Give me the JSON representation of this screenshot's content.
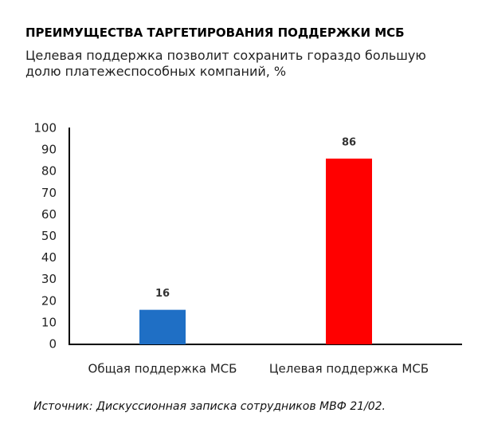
{
  "chart_data": {
    "type": "bar",
    "title": "ПРЕИМУЩЕСТВА ТАРГЕТИРОВАНИЯ ПОДДЕРЖКИ МСБ",
    "subtitle": "Целевая поддержка позволит сохранить гораздо большую долю платежеспособных компаний, %",
    "source": "Источник: Дискуссионная записка сотрудников МВФ 21/02.",
    "categories": [
      "Общая поддержка МСБ",
      "Целевая поддержка МСБ"
    ],
    "values": [
      16,
      86
    ],
    "colors": [
      "#1f6fc5",
      "#ff0000"
    ],
    "ylim": [
      0,
      100
    ],
    "yticks": [
      0,
      10,
      20,
      30,
      40,
      50,
      60,
      70,
      80,
      90,
      100
    ],
    "grid": false
  }
}
